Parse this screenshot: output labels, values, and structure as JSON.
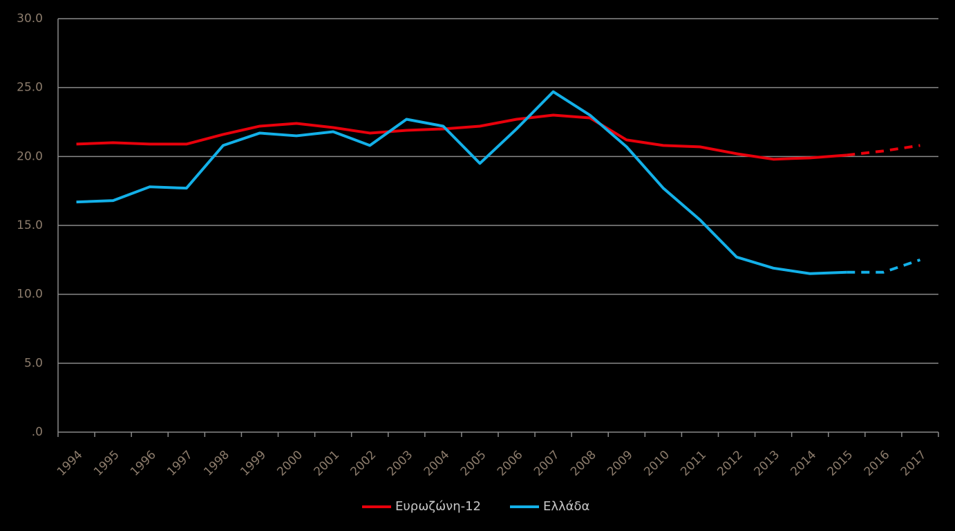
{
  "chart_data": {
    "type": "line",
    "categories": [
      "1994",
      "1995",
      "1996",
      "1997",
      "1998",
      "1999",
      "2000",
      "2001",
      "2002",
      "2003",
      "2004",
      "2005",
      "2006",
      "2007",
      "2008",
      "2009",
      "2010",
      "2011",
      "2012",
      "2013",
      "2014",
      "2015",
      "2016",
      "2017"
    ],
    "series": [
      {
        "name": "Ευρωζώνη-12",
        "color": "#e8000b",
        "dash_start": 21,
        "values": [
          20.9,
          21.0,
          20.9,
          20.9,
          21.6,
          22.2,
          22.4,
          22.1,
          21.7,
          21.9,
          22.0,
          22.2,
          22.7,
          23.0,
          22.8,
          21.2,
          20.8,
          20.7,
          20.2,
          19.8,
          19.9,
          20.1,
          20.4,
          20.8
        ]
      },
      {
        "name": "Ελλάδα",
        "color": "#13b0e8",
        "dash_start": 21,
        "values": [
          16.7,
          16.8,
          17.8,
          17.7,
          20.8,
          21.7,
          21.5,
          21.8,
          20.8,
          22.7,
          22.2,
          19.5,
          22.0,
          24.7,
          23.0,
          20.7,
          17.7,
          15.4,
          12.7,
          11.9,
          11.5,
          11.6,
          11.6,
          12.5
        ]
      }
    ],
    "ylim": [
      0,
      30
    ],
    "yticks": [
      {
        "value": 0,
        "label": ".0"
      },
      {
        "value": 5,
        "label": "5.0"
      },
      {
        "value": 10,
        "label": "10.0"
      },
      {
        "value": 15,
        "label": "15.0"
      },
      {
        "value": 20,
        "label": "20.0"
      },
      {
        "value": 25,
        "label": "25.0"
      },
      {
        "value": 30,
        "label": "30.0"
      }
    ],
    "grid": true,
    "legend": "bottom"
  }
}
